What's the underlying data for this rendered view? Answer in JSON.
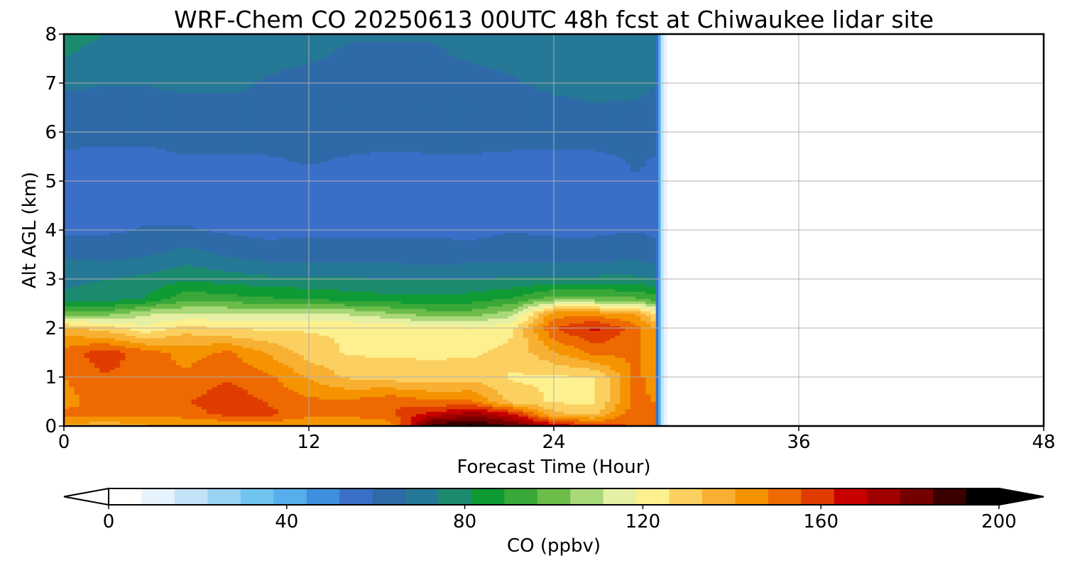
{
  "chart_data": {
    "type": "heatmap",
    "title": "WRF-Chem CO  20250613 00UTC 48h fcst at Chiwaukee lidar site",
    "xlabel": "Forecast Time (Hour)",
    "ylabel": "Alt AGL (km)",
    "xlim": [
      0,
      48
    ],
    "ylim": [
      0,
      8
    ],
    "xticks": [
      "0",
      "12",
      "24",
      "36",
      "48"
    ],
    "yticks": [
      "0",
      "1",
      "2",
      "3",
      "4",
      "5",
      "6",
      "7",
      "8"
    ],
    "grid": true,
    "data_end_hour": 29,
    "colorbar": {
      "label": "CO  (ppbv)",
      "ticks": [
        "0",
        "40",
        "80",
        "120",
        "160",
        "200"
      ],
      "range": [
        0,
        200
      ],
      "extend": "both",
      "orientation": "horizontal",
      "colors": [
        "#ffffff",
        "#e6f2fc",
        "#c2e2f7",
        "#9ad2f2",
        "#72c4f0",
        "#56aeea",
        "#3f8fde",
        "#3a6fc8",
        "#2e6aa8",
        "#257896",
        "#1c8a6e",
        "#0f9a34",
        "#3aa838",
        "#6cbc4a",
        "#a8d878",
        "#e6f0a4",
        "#fdf08e",
        "#fbd060",
        "#f8b032",
        "#f59400",
        "#ee6a00",
        "#e03c00",
        "#c80000",
        "#a00000",
        "#740000",
        "#3a0000",
        "#000000"
      ],
      "below_color": "#ffffff",
      "above_color": "#000000"
    },
    "x_hours": [
      0,
      2,
      4,
      6,
      8,
      10,
      12,
      14,
      16,
      18,
      20,
      22,
      24,
      26,
      28,
      29
    ],
    "y_km": [
      0,
      0.25,
      0.5,
      1,
      1.5,
      2,
      2.3,
      2.6,
      3,
      3.5,
      4,
      4.5,
      5,
      5.5,
      6,
      6.5,
      7,
      7.5,
      8
    ],
    "values_ppbv": [
      [
        140,
        135,
        140,
        140,
        140,
        142,
        140,
        140,
        142,
        190,
        195,
        185,
        170,
        160,
        155,
        150
      ],
      [
        150,
        150,
        150,
        152,
        158,
        158,
        150,
        150,
        155,
        165,
        175,
        165,
        135,
        132,
        155,
        150
      ],
      [
        145,
        152,
        150,
        155,
        160,
        155,
        150,
        150,
        155,
        150,
        150,
        130,
        125,
        125,
        150,
        148
      ],
      [
        148,
        155,
        152,
        150,
        155,
        150,
        140,
        132,
        130,
        128,
        130,
        125,
        125,
        125,
        150,
        145
      ],
      [
        152,
        160,
        152,
        145,
        150,
        140,
        130,
        125,
        125,
        125,
        125,
        128,
        140,
        150,
        150,
        145
      ],
      [
        135,
        130,
        120,
        130,
        125,
        125,
        125,
        125,
        125,
        122,
        120,
        125,
        155,
        165,
        152,
        140
      ],
      [
        100,
        100,
        110,
        112,
        112,
        110,
        112,
        110,
        105,
        100,
        100,
        108,
        145,
        145,
        140,
        125
      ],
      [
        76,
        78,
        82,
        95,
        92,
        90,
        88,
        86,
        84,
        84,
        85,
        90,
        100,
        100,
        98,
        92
      ],
      [
        72,
        74,
        76,
        80,
        78,
        76,
        76,
        75,
        74,
        74,
        74,
        75,
        76,
        76,
        76,
        74
      ],
      [
        66,
        64,
        66,
        70,
        66,
        63,
        63,
        63,
        63,
        62,
        63,
        63,
        63,
        63,
        64,
        62
      ],
      [
        58,
        58,
        60,
        60,
        58,
        57,
        58,
        58,
        58,
        58,
        57,
        59,
        58,
        58,
        59,
        58
      ],
      [
        57,
        56,
        57,
        57,
        56,
        56,
        57,
        56,
        57,
        57,
        56,
        58,
        58,
        57,
        58,
        57
      ],
      [
        55,
        56,
        57,
        57,
        57,
        57,
        58,
        57,
        57,
        57,
        57,
        57,
        57,
        56,
        59,
        58
      ],
      [
        58,
        58,
        58,
        59,
        59,
        59,
        60,
        59,
        58,
        59,
        59,
        58,
        58,
        58,
        60,
        59
      ],
      [
        62,
        61,
        61,
        62,
        62,
        63,
        64,
        64,
        63,
        62,
        62,
        63,
        63,
        63,
        64,
        63
      ],
      [
        64,
        64,
        64,
        65,
        65,
        66,
        66,
        65,
        64,
        63,
        63,
        64,
        65,
        66,
        66,
        65
      ],
      [
        68,
        67,
        67,
        68,
        68,
        66,
        65,
        65,
        64,
        64,
        65,
        66,
        68,
        69,
        68,
        67
      ],
      [
        74,
        72,
        70,
        70,
        70,
        68,
        67,
        66,
        66,
        66,
        67,
        68,
        70,
        72,
        71,
        70
      ],
      [
        76,
        74,
        72,
        71,
        70,
        69,
        68,
        67,
        67,
        67,
        68,
        69,
        71,
        73,
        72,
        71
      ]
    ]
  }
}
